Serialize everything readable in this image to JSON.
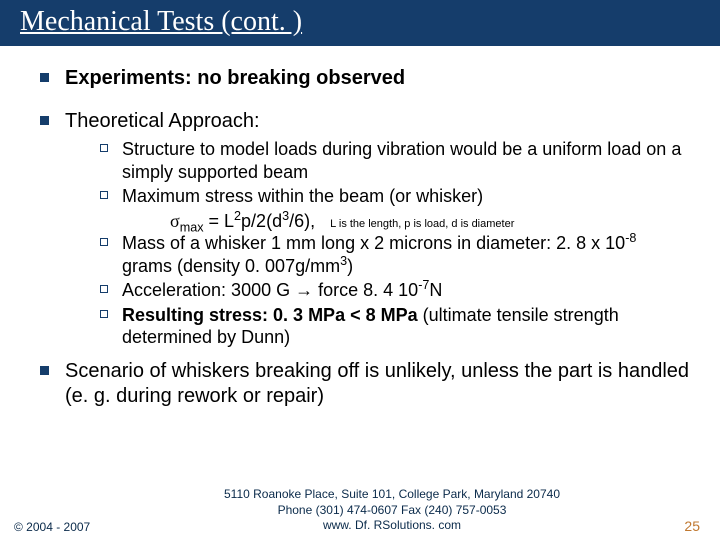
{
  "title": "Mechanical Tests (cont. )",
  "items": {
    "exp": "Experiments: no breaking observed",
    "theo": "Theoretical Approach:",
    "sub1": "Structure to model loads during vibration would be a uniform load on a simply supported beam",
    "sub2": "Maximum stress within the beam (or whisker)",
    "formula_note": "L is the length, p is load, d is diameter",
    "sub4": "Acceleration: 3000 G → force 8. 4 10",
    "sub4_exp": "-7",
    "sub4_tail": "N",
    "scenario": "Scenario of whiskers breaking off is unlikely, unless the part is handled (e. g. during rework or repair)"
  },
  "footer": {
    "copyright": "© 2004 - 2007",
    "addr1": "5110 Roanoke Place, Suite 101, College Park, Maryland 20740",
    "addr2": "Phone (301) 474-0607  Fax (240) 757-0053",
    "addr3": "www. Df. RSolutions. com",
    "page": "25"
  }
}
